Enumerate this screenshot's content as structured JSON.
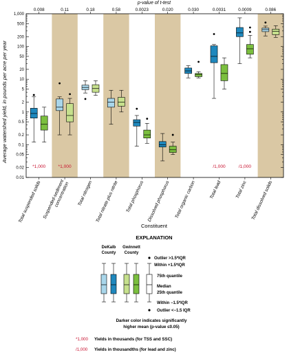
{
  "chart_data": {
    "type": "box",
    "title": "",
    "top_axis_label": "p-value of t-test",
    "ylabel": "Average watershed yield, in pounds per acre per year",
    "xlabel": "Constituent",
    "yscale": "log",
    "ylim": [
      0.01,
      1000
    ],
    "yticks": [
      "0.01",
      "0.02",
      "0.05",
      "0.1",
      "0.2",
      "0.5",
      "1",
      "2",
      "5",
      "10",
      "20",
      "50",
      "100",
      "200",
      "500",
      "1,000"
    ],
    "series_names": [
      "DeKalb County",
      "Gwinnett County"
    ],
    "colors": {
      "dekalb_light": "#a9d6ea",
      "dekalb_dark": "#1f88bd",
      "gwinnett_light": "#c6e08d",
      "gwinnett_dark": "#7bbf3f",
      "shade": "#dac8a4",
      "annotation": "#c8102e"
    },
    "categories": [
      {
        "label": "Total suspended solids",
        "p_value": "0.008",
        "shaded": false,
        "annotation": "*1,000",
        "dekalb": {
          "dark": true,
          "whisker_low": 0.12,
          "q1": 0.65,
          "median": 0.9,
          "q3": 1.3,
          "whisker_high": 2.9,
          "outliers": [
            3.3,
            3.3
          ]
        },
        "gwinnett": {
          "dark": true,
          "whisker_low": 0.12,
          "q1": 0.28,
          "median": 0.42,
          "q3": 0.75,
          "whisker_high": 1.4,
          "outliers": []
        }
      },
      {
        "label": "Suspended-sediment concentration",
        "p_value": "0.11",
        "shaded": true,
        "annotation": "*1,000",
        "dekalb": {
          "dark": false,
          "whisker_low": 0.2,
          "q1": 1.1,
          "median": 1.4,
          "q3": 2.5,
          "whisker_high": 2.9,
          "outliers": [
            7.5
          ]
        },
        "gwinnett": {
          "dark": false,
          "whisker_low": 0.2,
          "q1": 0.5,
          "median": 0.78,
          "q3": 1.8,
          "whisker_high": 2.6,
          "outliers": [
            3.5
          ]
        }
      },
      {
        "label": "Total nitrogen",
        "p_value": "0.18",
        "shaded": false,
        "annotation": "",
        "dekalb": {
          "dark": false,
          "whisker_low": 3.8,
          "q1": 4.8,
          "median": 5.6,
          "q3": 6.6,
          "whisker_high": 9.0,
          "outliers": [
            2.5
          ]
        },
        "gwinnett": {
          "dark": false,
          "whisker_low": 3.2,
          "q1": 4.0,
          "median": 5.2,
          "q3": 6.8,
          "whisker_high": 9.0,
          "outliers": []
        }
      },
      {
        "label": "Total nitrate plus nitrite",
        "p_value": "0.58",
        "shaded": true,
        "annotation": "",
        "dekalb": {
          "dark": false,
          "whisker_low": 0.42,
          "q1": 1.4,
          "median": 2.0,
          "q3": 2.6,
          "whisker_high": 4.6,
          "outliers": []
        },
        "gwinnett": {
          "dark": false,
          "whisker_low": 1.0,
          "q1": 1.5,
          "median": 2.0,
          "q3": 2.8,
          "whisker_high": 4.6,
          "outliers": []
        }
      },
      {
        "label": "Total phosphorus",
        "p_value": "0.0023",
        "shaded": false,
        "annotation": "",
        "dekalb": {
          "dark": true,
          "whisker_low": 0.09,
          "q1": 0.37,
          "median": 0.48,
          "q3": 0.58,
          "whisker_high": 0.78,
          "outliers": [
            1.25
          ]
        },
        "gwinnett": {
          "dark": true,
          "whisker_low": 0.11,
          "q1": 0.16,
          "median": 0.2,
          "q3": 0.28,
          "whisker_high": 0.45,
          "outliers": [
            0.62
          ]
        }
      },
      {
        "label": "Dissolved phosphorus",
        "p_value": "0.020",
        "shaded": true,
        "annotation": "",
        "dekalb": {
          "dark": true,
          "whisker_low": 0.032,
          "q1": 0.085,
          "median": 0.1,
          "q3": 0.125,
          "whisker_high": 0.22,
          "outliers": []
        },
        "gwinnett": {
          "dark": true,
          "whisker_low": 0.05,
          "q1": 0.058,
          "median": 0.07,
          "q3": 0.09,
          "whisker_high": 0.12,
          "outliers": [
            0.2
          ]
        }
      },
      {
        "label": "Total organic carbon",
        "p_value": "0.030",
        "shaded": false,
        "annotation": "",
        "dekalb": {
          "dark": true,
          "whisker_low": 11,
          "q1": 15,
          "median": 18,
          "q3": 22,
          "whisker_high": 26,
          "outliers": []
        },
        "gwinnett": {
          "dark": true,
          "whisker_low": 11,
          "q1": 12,
          "median": 14,
          "q3": 15,
          "whisker_high": 17,
          "outliers": [
            34
          ]
        }
      },
      {
        "label": "Total lead",
        "p_value": "0.0031",
        "shaded": false,
        "annotation": "/1,000",
        "dekalb": {
          "dark": true,
          "whisker_low": 2.6,
          "q1": 32,
          "median": 50,
          "q3": 105,
          "whisker_high": 115,
          "outliers": [
            240
          ]
        },
        "gwinnett": {
          "dark": true,
          "whisker_low": 5,
          "q1": 9,
          "median": 15,
          "q3": 28,
          "whisker_high": 45,
          "outliers": []
        }
      },
      {
        "label": "Total zinc",
        "p_value": "0.0009",
        "shaded": false,
        "annotation": "/1,000",
        "dekalb": {
          "dark": true,
          "whisker_low": 30,
          "q1": 200,
          "median": 260,
          "q3": 380,
          "whisker_high": 750,
          "outliers": []
        },
        "gwinnett": {
          "dark": true,
          "whisker_low": 45,
          "q1": 58,
          "median": 85,
          "q3": 115,
          "whisker_high": 220,
          "outliers": [
            380,
            280
          ]
        }
      },
      {
        "label": "Total dissolved solids",
        "p_value": "0.086",
        "shaded": true,
        "annotation": "",
        "dekalb": {
          "dark": false,
          "whisker_low": 210,
          "q1": 285,
          "median": 330,
          "q3": 365,
          "whisker_high": 420,
          "outliers": [
            540
          ]
        },
        "gwinnett": {
          "dark": false,
          "whisker_low": 190,
          "q1": 230,
          "median": 290,
          "q3": 340,
          "whisker_high": 430,
          "outliers": []
        }
      }
    ]
  },
  "legend": {
    "title": "EXPLANATION",
    "dekalb_label": [
      "DeKalb",
      "County"
    ],
    "gwinnett_label": [
      "Gwinnett",
      "County"
    ],
    "outlier_high": "Outlier >1.5*IQR",
    "within_high": "Within +1.5*IQR",
    "q75": "75th quantile",
    "median": "Median",
    "q25": "25th quantile",
    "within_low": "Within −1.5*IQR",
    "outlier_low": "Outlier <−1.5 IQR",
    "darker_note": [
      "Darker color indicates significantly",
      "higher mean (p-value ≤0.05)"
    ],
    "tss_note": {
      "marker": "*1,000",
      "text": "Yields in thousands (for TSS and SSC)"
    },
    "lead_note": {
      "marker": "/1,000",
      "text": "Yields in thousandths (for lead and zinc)"
    }
  }
}
